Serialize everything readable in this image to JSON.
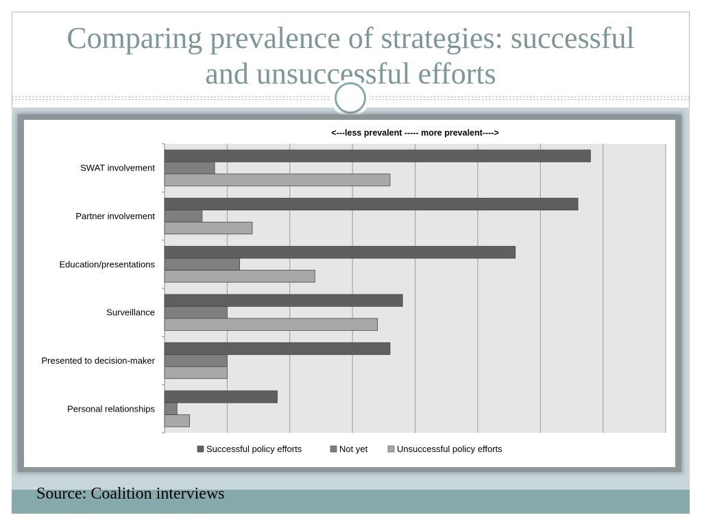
{
  "slide": {
    "title_line1": "Comparing prevalence of strategies: successful",
    "title_line2": "and unsuccessful efforts",
    "source": "Source: Coalition interviews"
  },
  "colors": {
    "title": "#7b9799",
    "accent": "#86a9ab",
    "content_background": "#c8d7dc",
    "plot_background": "#e6e6e6",
    "successful": "#5f5f5f",
    "not_yet": "#7f7f7f",
    "unsuccessful": "#a8a8a8"
  },
  "chart_data": {
    "type": "bar",
    "orientation": "horizontal",
    "title": "<---less prevalent ----- more prevalent---->",
    "categories": [
      "SWAT involvement",
      "Partner involvement",
      "Education/presentations",
      "Surveillance",
      "Presented to decision-maker",
      "Personal relationships"
    ],
    "series": [
      {
        "name": "Successful policy efforts",
        "values": [
          34,
          33,
          28,
          19,
          18,
          9
        ]
      },
      {
        "name": "Not yet",
        "values": [
          4,
          3,
          6,
          5,
          5,
          1
        ]
      },
      {
        "name": "Unsuccessful policy efforts",
        "values": [
          18,
          7,
          12,
          17,
          5,
          2
        ]
      }
    ],
    "xlim": [
      0,
      40
    ],
    "x_gridline_step": 5,
    "tick_labels_shown": false,
    "grid": true,
    "legend_position": "bottom"
  }
}
